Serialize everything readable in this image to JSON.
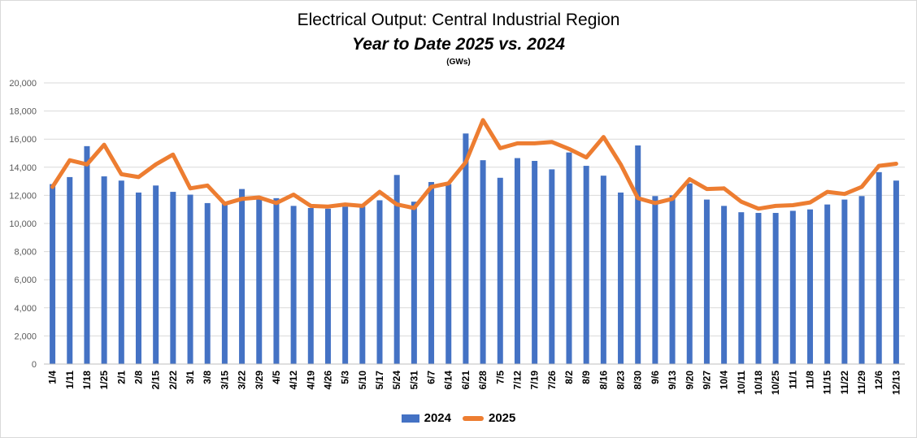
{
  "chart_data": {
    "type": "bar",
    "title": "Electrical Output:  Central Industrial Region",
    "subtitle": "Year to Date 2025 vs. 2024",
    "unit_label": "(GWs)",
    "ylim": [
      0,
      20000
    ],
    "y_ticks": [
      "0",
      "2,000",
      "4,000",
      "6,000",
      "8,000",
      "10,000",
      "12,000",
      "14,000",
      "16,000",
      "18,000",
      "20,000"
    ],
    "grid": true,
    "legend_position": "bottom",
    "categories": [
      "1/4",
      "1/11",
      "1/18",
      "1/25",
      "2/1",
      "2/8",
      "2/15",
      "2/22",
      "3/1",
      "3/8",
      "3/15",
      "3/22",
      "3/29",
      "4/5",
      "4/12",
      "4/19",
      "4/26",
      "5/3",
      "5/10",
      "5/17",
      "5/24",
      "5/31",
      "6/7",
      "6/14",
      "6/21",
      "6/28",
      "7/5",
      "7/12",
      "7/19",
      "7/26",
      "8/2",
      "8/9",
      "8/16",
      "8/23",
      "8/30",
      "9/6",
      "9/13",
      "9/20",
      "9/27",
      "10/4",
      "10/11",
      "10/18",
      "10/25",
      "11/1",
      "11/8",
      "11/15",
      "11/22",
      "11/29",
      "12/6",
      "12/13"
    ],
    "series": [
      {
        "name": "2024",
        "render": "bar",
        "color": "#4472c4",
        "values": [
          12800,
          13300,
          15500,
          13350,
          13050,
          12200,
          12700,
          12250,
          12050,
          11450,
          11400,
          12450,
          11800,
          11800,
          11250,
          11100,
          11050,
          11200,
          11200,
          11650,
          13450,
          11550,
          12950,
          12800,
          16400,
          14500,
          13250,
          14650,
          14450,
          13850,
          15050,
          14100,
          13400,
          12200,
          15550,
          11950,
          12000,
          12850,
          11700,
          11250,
          10800,
          10750,
          10750,
          10900,
          11000,
          11350,
          11700,
          11950,
          13650,
          13050
        ]
      },
      {
        "name": "2025",
        "render": "line",
        "color": "#ed7d31",
        "values": [
          12600,
          14500,
          14200,
          15600,
          13500,
          13300,
          14200,
          14900,
          12500,
          12700,
          11400,
          11750,
          11850,
          11450,
          12050,
          11250,
          11200,
          11350,
          11250,
          12250,
          11350,
          11100,
          12600,
          12850,
          14350,
          17350,
          15350,
          15700,
          15700,
          15800,
          15300,
          14700,
          16150,
          14200,
          11800,
          11450,
          11750,
          13150,
          12450,
          12500,
          11550,
          11050,
          11250,
          11300,
          11500,
          12250,
          12100,
          12600,
          14100,
          14250
        ]
      }
    ]
  }
}
